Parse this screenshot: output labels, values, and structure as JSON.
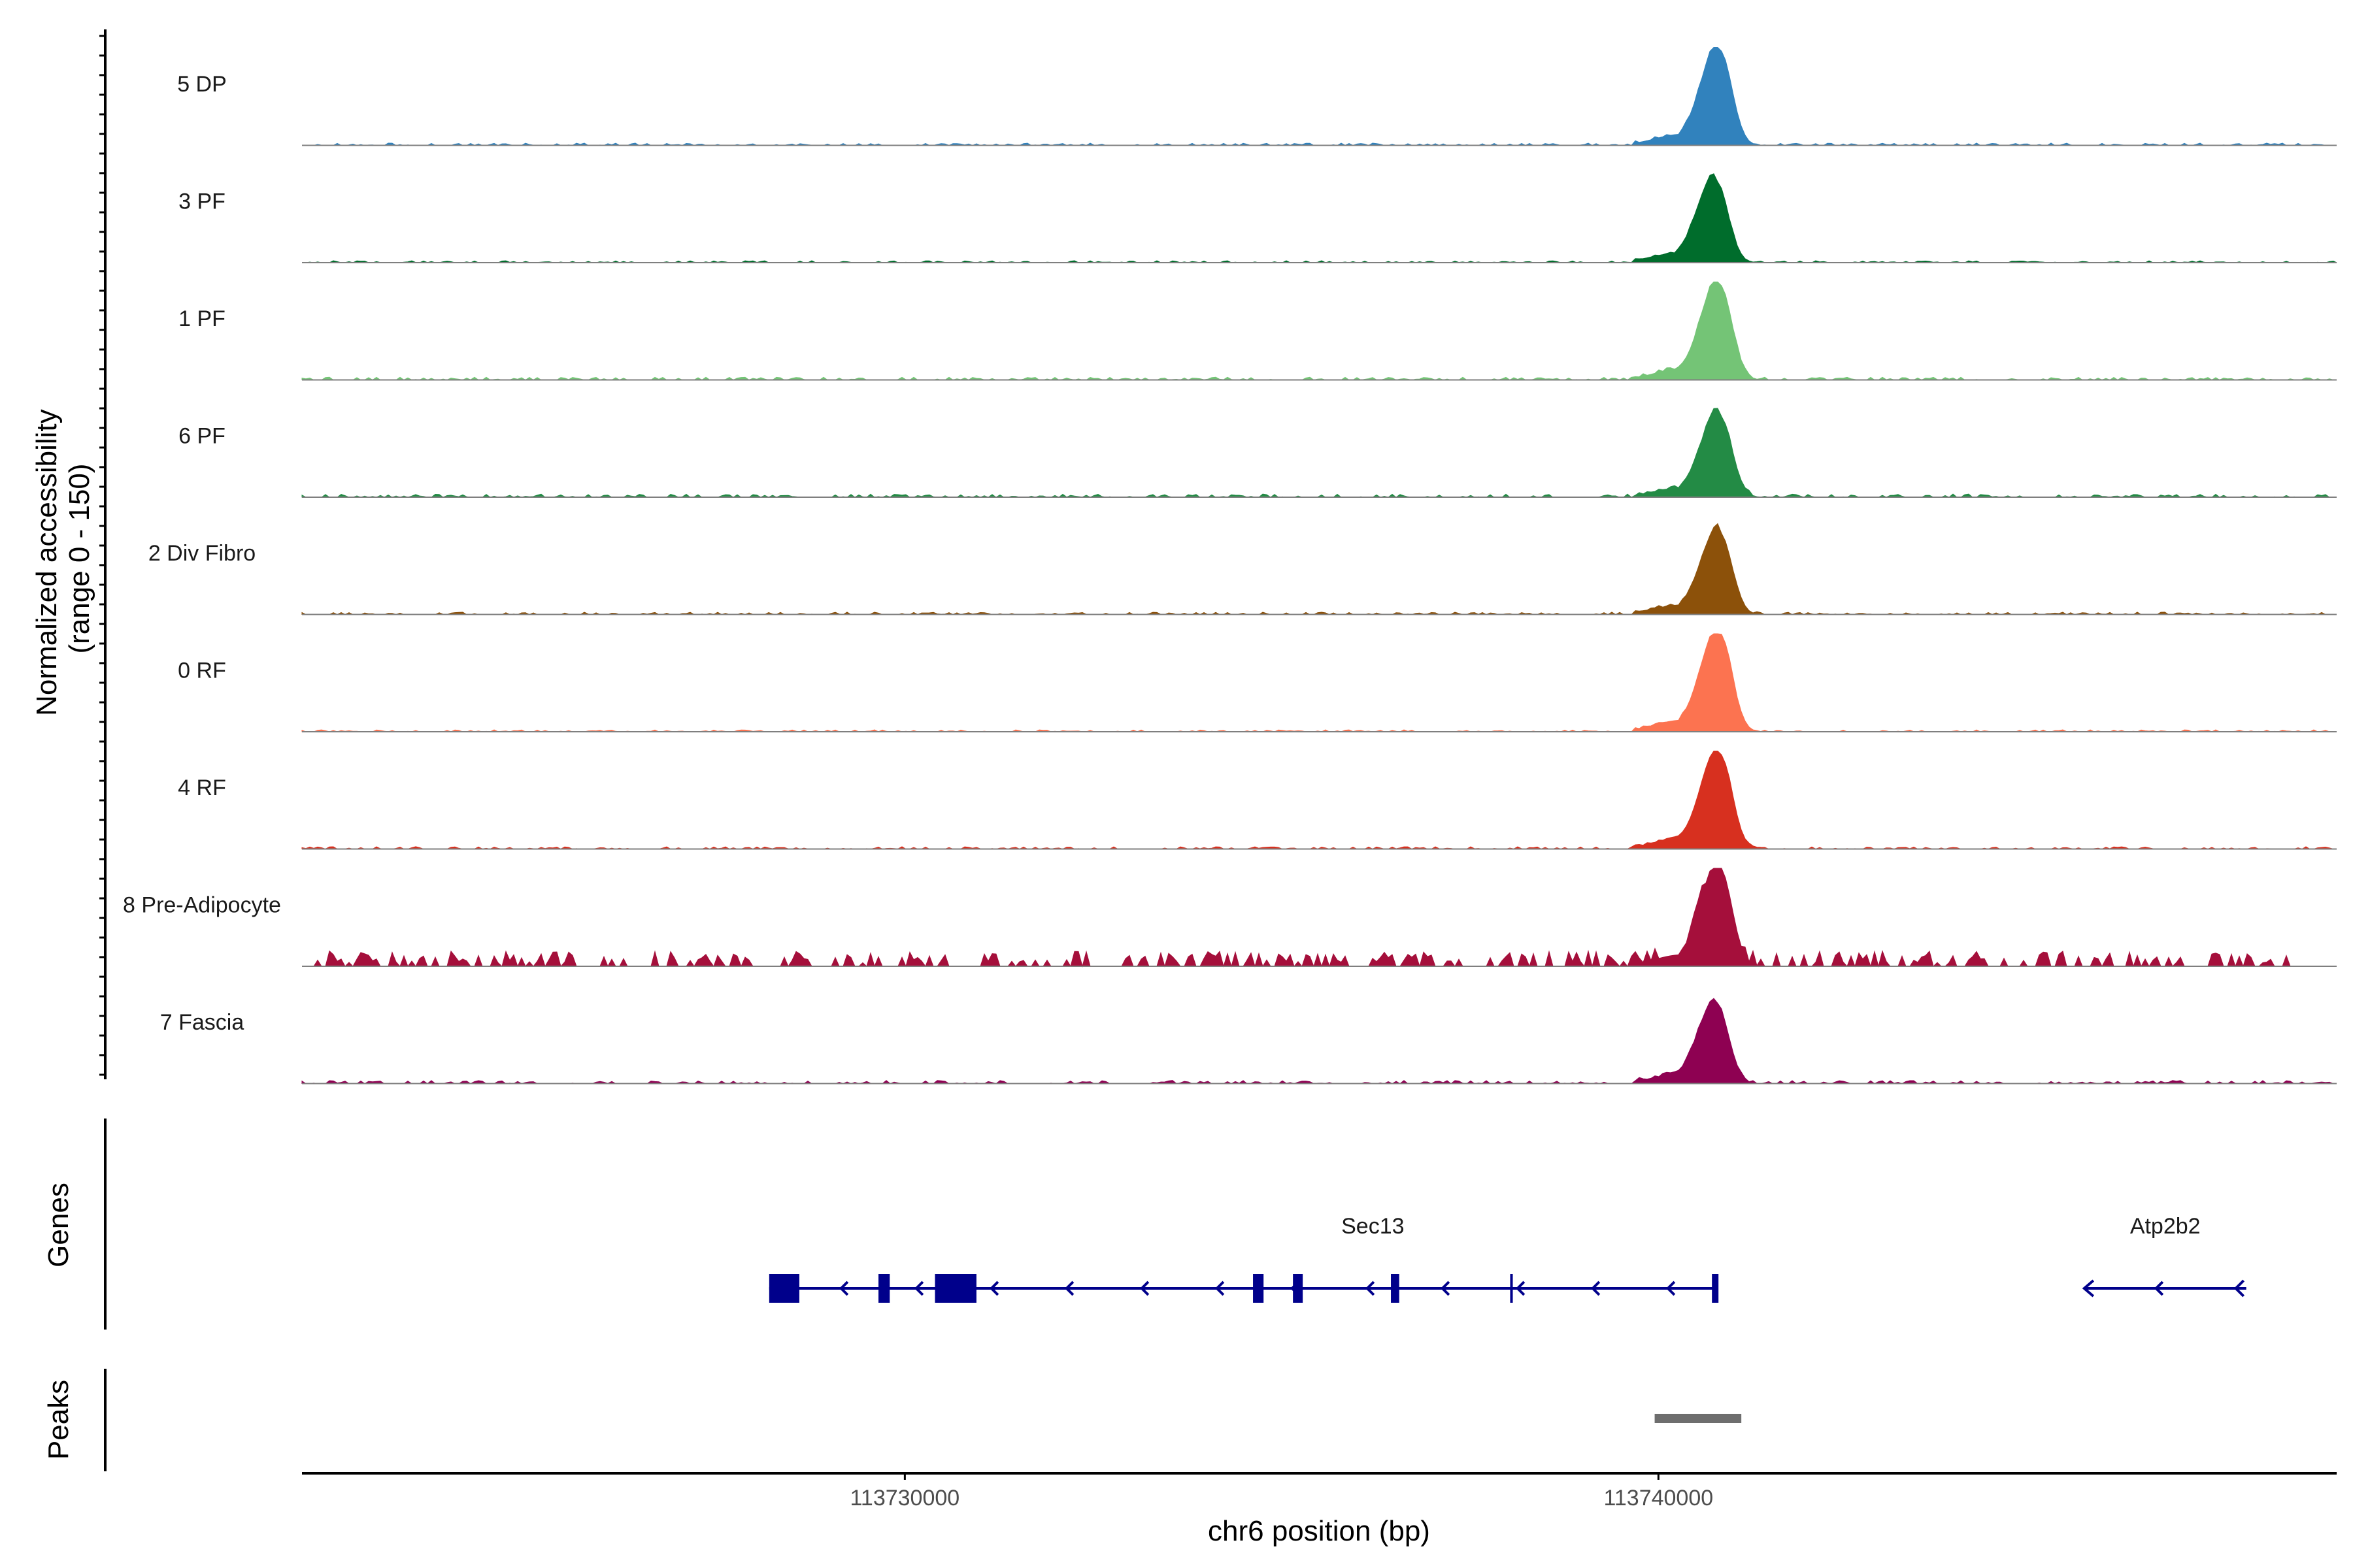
{
  "chart_data": {
    "type": "area",
    "title": "",
    "xlabel": "chr6 position (bp)",
    "ylabel": "Normalized accessibility\n(range 0 - 150)",
    "ylabel_line1": "Normalized accessibility",
    "ylabel_line2": "(range 0 - 150)",
    "ylim": [
      0,
      150
    ],
    "xlim": [
      113722000,
      113749000
    ],
    "x_ticks": [
      113730000,
      113740000
    ],
    "x_tick_labels": [
      "113730000",
      "113740000"
    ],
    "grid": false,
    "series": [
      {
        "name": "5 DP",
        "color": "#3182bd",
        "peak": 140,
        "peak_pos": 113740820,
        "noise": 6,
        "sparse": false
      },
      {
        "name": "3 PF",
        "color": "#006d2c",
        "peak": 120,
        "peak_pos": 113740770,
        "noise": 5,
        "sparse": false
      },
      {
        "name": "1 PF",
        "color": "#74c476",
        "peak": 140,
        "peak_pos": 113740820,
        "noise": 7,
        "sparse": false
      },
      {
        "name": "6 PF",
        "color": "#238b45",
        "peak": 120,
        "peak_pos": 113740820,
        "noise": 8,
        "sparse": false
      },
      {
        "name": "2 Div Fibro",
        "color": "#8c510a",
        "peak": 120,
        "peak_pos": 113740820,
        "noise": 6,
        "sparse": false
      },
      {
        "name": "0 RF",
        "color": "#fc7350",
        "peak": 145,
        "peak_pos": 113740820,
        "noise": 5,
        "sparse": false
      },
      {
        "name": "4 RF",
        "color": "#d7301f",
        "peak": 140,
        "peak_pos": 113740820,
        "noise": 6,
        "sparse": false
      },
      {
        "name": "8 Pre-Adipocyte",
        "color": "#a50f3b",
        "peak": 145,
        "peak_pos": 113740820,
        "noise": 18,
        "sparse": true
      },
      {
        "name": "7 Fascia",
        "color": "#8e0152",
        "peak": 115,
        "peak_pos": 113740780,
        "noise": 8,
        "sparse": false
      }
    ],
    "genes_panel_label": "Genes",
    "peaks_panel_label": "Peaks",
    "genes": [
      {
        "name": "Sec13",
        "strand": "-",
        "start": 113728200,
        "end": 113740750,
        "exons": [
          [
            113728200,
            113728600
          ],
          [
            113729650,
            113729800
          ],
          [
            113730400,
            113730950
          ],
          [
            113734620,
            113734760
          ],
          [
            113735150,
            113735280
          ],
          [
            113736450,
            113736560
          ],
          [
            113740710,
            113740790
          ]
        ]
      },
      {
        "name": "Atp2b2",
        "strand": "-",
        "start": 113745650,
        "end": 113747800,
        "exons": []
      }
    ],
    "peaks": [
      {
        "start": 113739950,
        "end": 113741100
      }
    ],
    "colors": {
      "gene": "#00008b",
      "peak": "#6e6e6e",
      "baseline": "#7f7f7f",
      "axis": "#000000"
    }
  }
}
